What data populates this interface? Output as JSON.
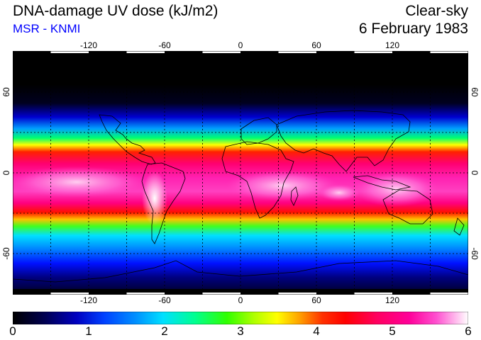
{
  "header": {
    "title": "DNA-damage UV dose (kJ/m2)",
    "source": "MSR - KNMI",
    "sky_type": "Clear-sky",
    "date": "6 February 1983"
  },
  "map": {
    "projection": "equirectangular",
    "lon_range": [
      -180,
      180
    ],
    "lat_range": [
      -90,
      90
    ],
    "graticule_dotted": true,
    "graticule_lon_step": 30,
    "graticule_lat_step": 30,
    "lon_ticks": [
      {
        "value": -120,
        "label": "-120"
      },
      {
        "value": -60,
        "label": "-60"
      },
      {
        "value": 0,
        "label": "0"
      },
      {
        "value": 60,
        "label": "60"
      },
      {
        "value": 120,
        "label": "120"
      }
    ],
    "lat_ticks": [
      {
        "value": 60,
        "label": "60"
      },
      {
        "value": 0,
        "label": "0"
      },
      {
        "value": -60,
        "label": "-60"
      }
    ]
  },
  "colorbar": {
    "min": 0,
    "max": 6,
    "labels": [
      "0",
      "1",
      "2",
      "3",
      "4",
      "5",
      "6"
    ],
    "colors": [
      "#000000",
      "#000070",
      "#0000ff",
      "#0070ff",
      "#00e0ff",
      "#00ff90",
      "#30ff00",
      "#b0ff00",
      "#ffff00",
      "#ff9000",
      "#ff0000",
      "#ff0060",
      "#ff0099",
      "#ff50d0",
      "#ffc0f0",
      "#ffffff"
    ]
  }
}
